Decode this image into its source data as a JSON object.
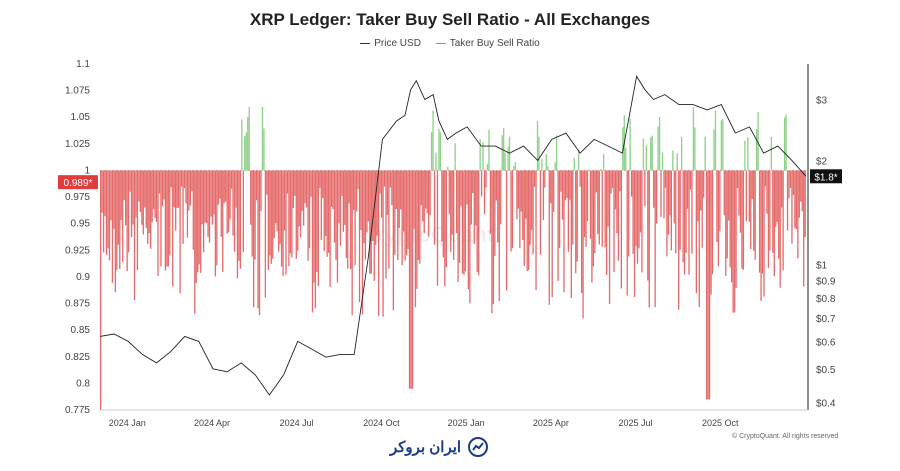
{
  "chart_data": {
    "type": "bar",
    "title": "XRP Ledger: Taker Buy Sell Ratio - All Exchanges",
    "legend": [
      "Price USD",
      "Taker Buy Sell Ratio"
    ],
    "legend_position": "top-center",
    "x_ticks": [
      "2024 Jan",
      "2024 Apr",
      "2024 Jul",
      "2024 Oct",
      "2025 Jan",
      "2025 Apr",
      "2025 Jul",
      "2025 Oct"
    ],
    "left_axis": {
      "ticks": [
        "1.1",
        "1.075",
        "1.05",
        "1.025",
        "1",
        "0.975",
        "0.95",
        "0.925",
        "0.9",
        "0.875",
        "0.85",
        "0.825",
        "0.8",
        "0.775"
      ],
      "range": [
        0.775,
        1.1
      ],
      "current_label": "0.989*",
      "current_value": 0.989,
      "reference_value": 1
    },
    "right_axis": {
      "ticks": [
        "$3",
        "$2",
        "$1",
        "$0.9",
        "$0.8",
        "$0.7",
        "$0.6",
        "$0.5",
        "$0.4"
      ],
      "tick_values": [
        3,
        2,
        1,
        0.9,
        0.8,
        0.7,
        0.6,
        0.5,
        0.4
      ],
      "scale": "log",
      "range": [
        0.38,
        3.8
      ],
      "current_label": "$1.8*",
      "current_value": 1.8
    },
    "x_range_months": [
      0,
      25
    ],
    "price_series": {
      "name": "Price USD",
      "t": [
        0.0,
        0.5,
        1.0,
        1.5,
        2.0,
        2.5,
        3.0,
        3.5,
        4.0,
        4.5,
        5.0,
        5.5,
        6.0,
        6.5,
        7.0,
        7.5,
        8.0,
        8.5,
        9.0,
        9.5,
        10.0,
        10.5,
        10.8,
        11.0,
        11.2,
        11.5,
        11.8,
        12.0,
        12.3,
        12.6,
        13.0,
        13.5,
        14.0,
        14.5,
        15.0,
        15.5,
        16.0,
        16.5,
        17.0,
        17.5,
        18.0,
        18.5,
        19.0,
        19.3,
        19.6,
        20.0,
        20.5,
        21.0,
        21.5,
        22.0,
        22.5,
        23.0,
        23.5,
        24.0,
        24.5,
        25.0
      ],
      "values": [
        0.62,
        0.63,
        0.6,
        0.55,
        0.52,
        0.56,
        0.62,
        0.6,
        0.5,
        0.49,
        0.52,
        0.48,
        0.42,
        0.48,
        0.6,
        0.57,
        0.54,
        0.55,
        0.55,
        1.05,
        2.3,
        2.6,
        2.7,
        3.2,
        3.4,
        3.0,
        3.1,
        2.6,
        2.3,
        2.4,
        2.5,
        2.2,
        2.2,
        2.1,
        2.2,
        2.0,
        2.3,
        2.4,
        2.1,
        2.3,
        2.2,
        2.1,
        3.5,
        3.2,
        3.0,
        3.1,
        2.9,
        2.9,
        2.8,
        2.9,
        2.4,
        2.5,
        2.1,
        2.2,
        2.0,
        1.8
      ]
    },
    "ratio_series": {
      "name": "Taker Buy Sell Ratio",
      "count": 480,
      "baseline_color_above": "#8fd18b",
      "baseline_color_below": "#e56b6b"
    },
    "colors": {
      "price": "#222222",
      "above_one": "#8fd18b",
      "below_one": "#e56b6b",
      "badge_ratio": "#e03c3c",
      "badge_price": "#111111"
    }
  },
  "footer": {
    "copyright": "© CryptoQuant. All rights reserved",
    "brand": "ایران بروکر",
    "watermark": "CryptoQuant"
  }
}
